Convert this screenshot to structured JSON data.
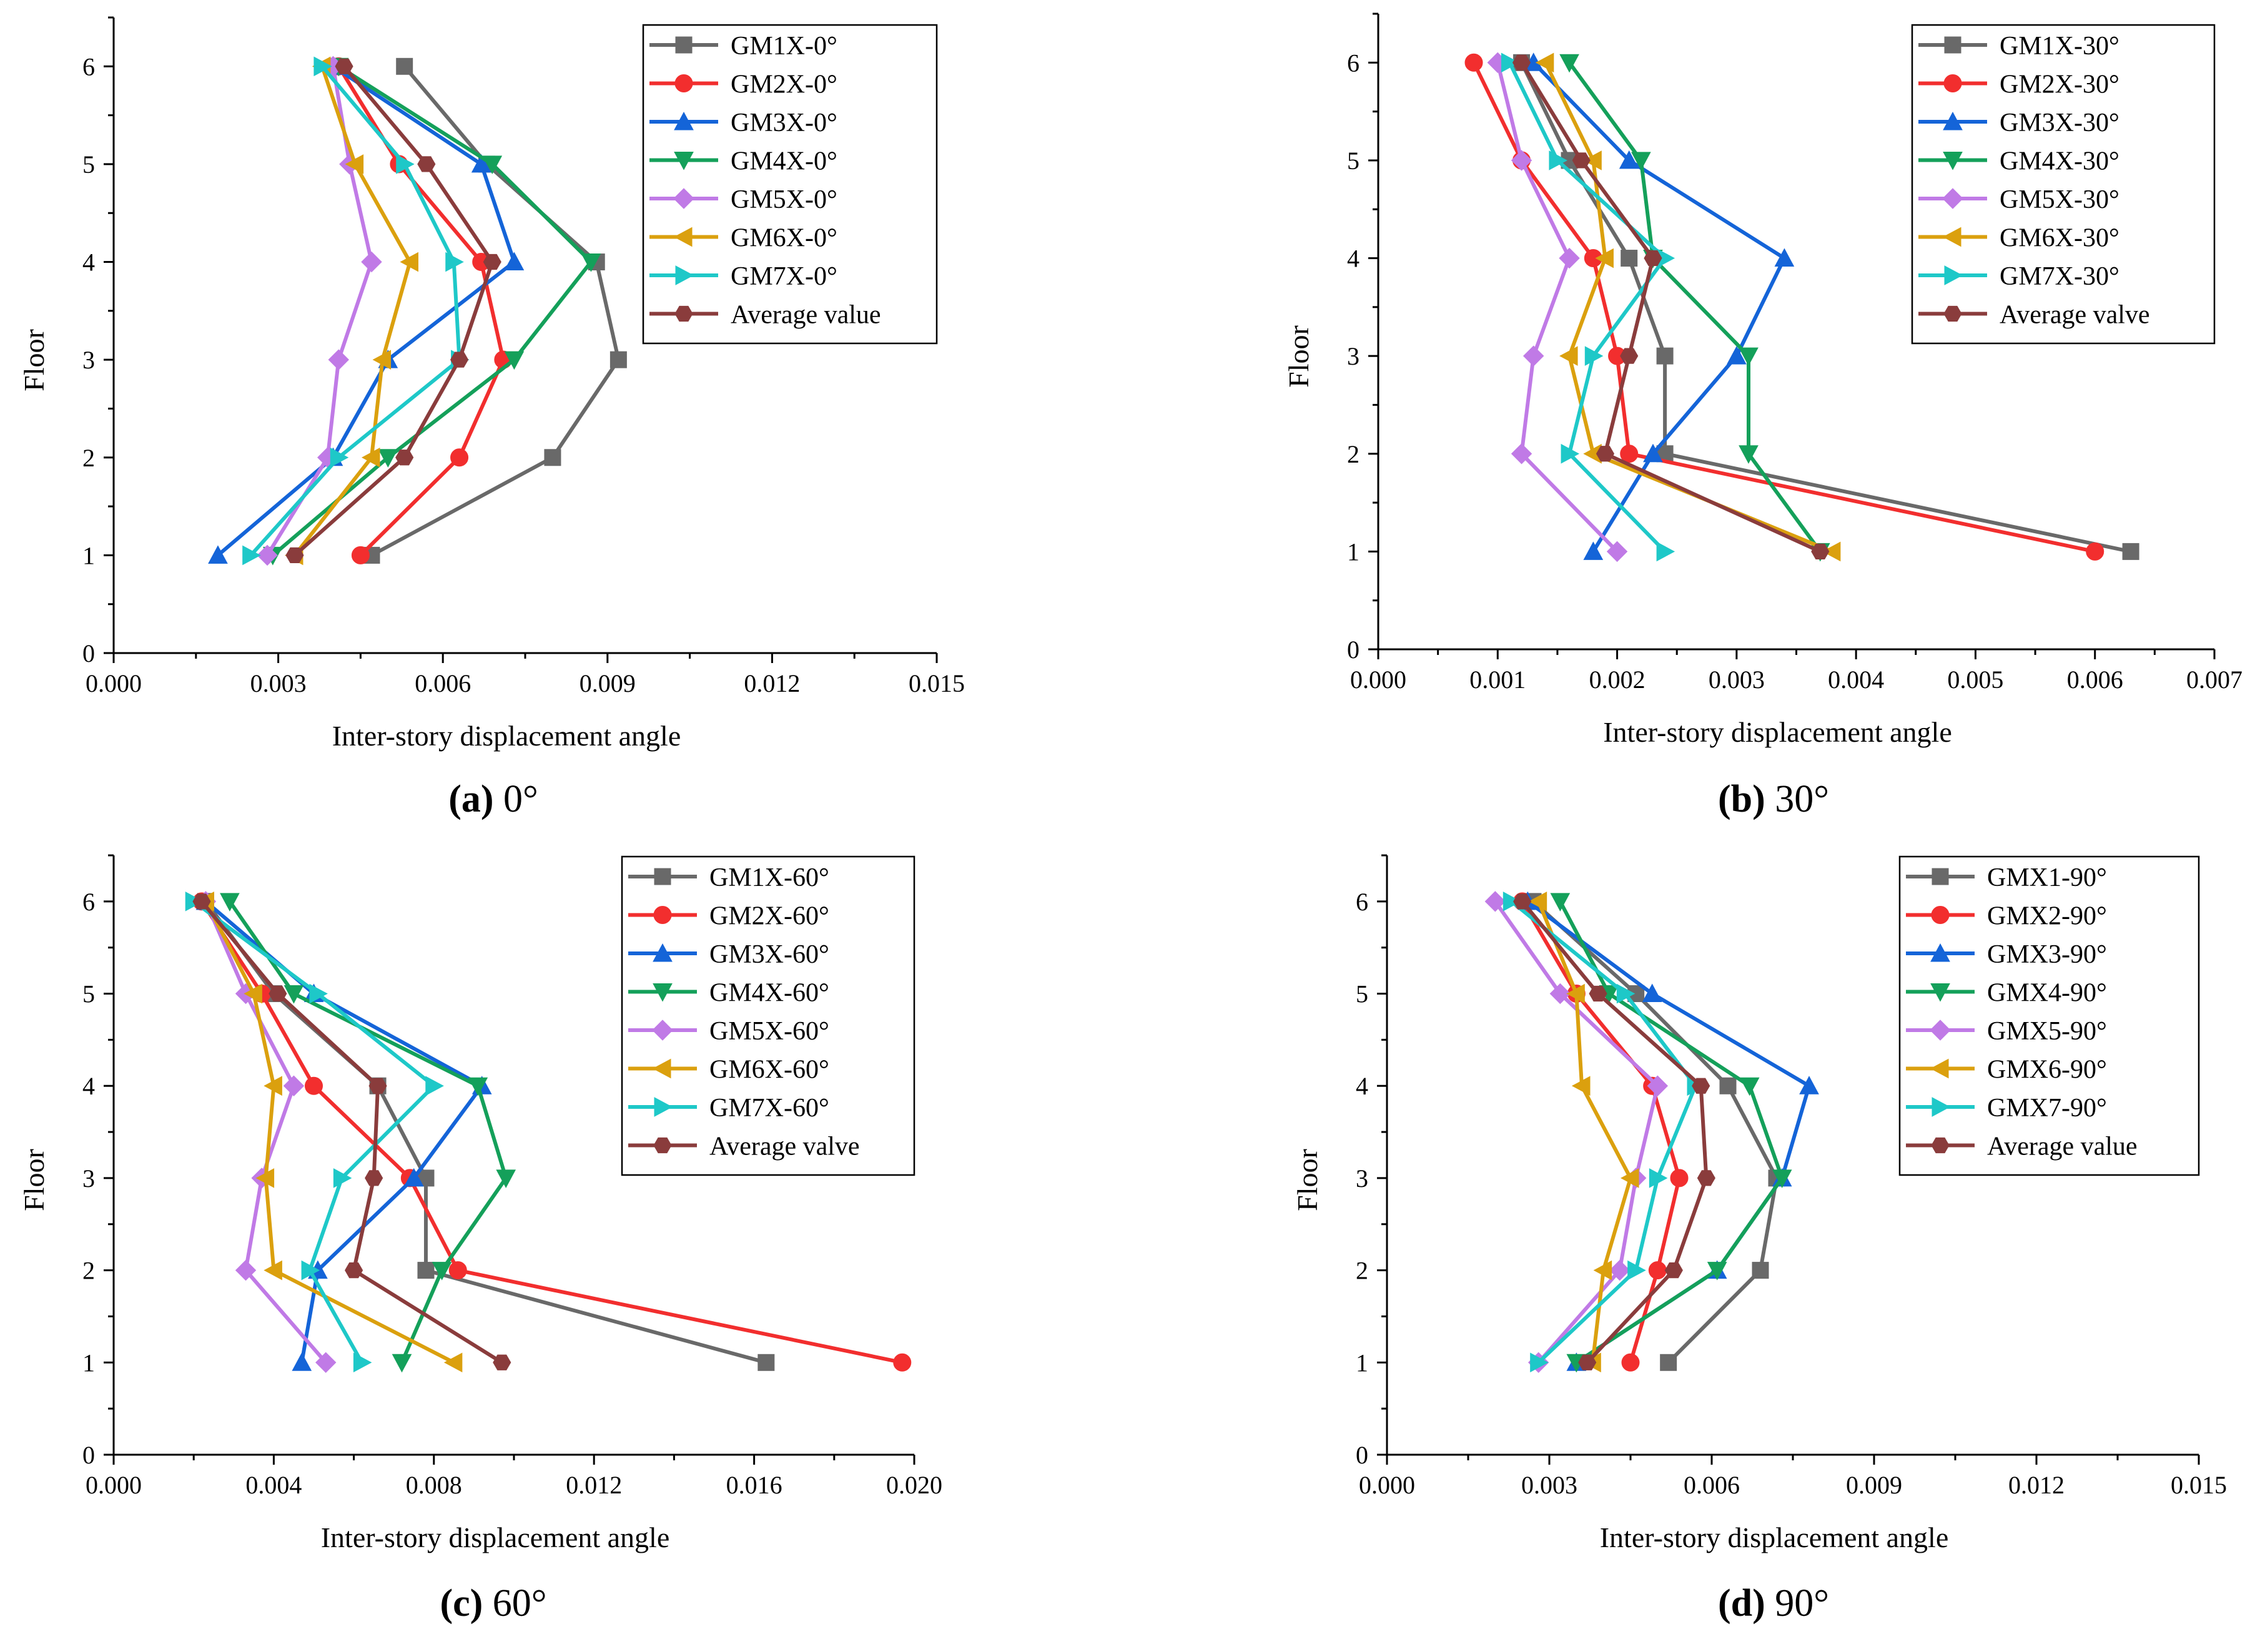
{
  "series_colors": [
    "#696969",
    "#f22e2e",
    "#1464d8",
    "#14a05a",
    "#c07ae6",
    "#dba00e",
    "#1ec8c8",
    "#8a3c3c"
  ],
  "series_markers": [
    "square",
    "circle",
    "triangle-up",
    "triangle-down",
    "diamond",
    "triangle-left",
    "triangle-right",
    "hexagon"
  ],
  "chart_data": [
    {
      "type": "line",
      "panel_label": "(a)",
      "caption": "0°",
      "xlabel": "Inter-story displacement angle",
      "ylabel": "Floor",
      "xlim": [
        0,
        0.015
      ],
      "xticks": [
        "0.000",
        "0.003",
        "0.006",
        "0.009",
        "0.012",
        "0.015"
      ],
      "ylim": [
        0,
        6.5
      ],
      "yticks": [
        "0",
        "1",
        "2",
        "3",
        "4",
        "5",
        "6"
      ],
      "floors": [
        1,
        2,
        3,
        4,
        5,
        6
      ],
      "legend_position": "top-right",
      "series": [
        {
          "name": "GM1X-0°",
          "values": [
            0.0047,
            0.008,
            0.0092,
            0.0088,
            0.0068,
            0.0053
          ]
        },
        {
          "name": "GM2X-0°",
          "values": [
            0.0045,
            0.0063,
            0.0071,
            0.0067,
            0.0052,
            0.0041
          ]
        },
        {
          "name": "GM3X-0°",
          "values": [
            0.0019,
            0.004,
            0.005,
            0.0073,
            0.0067,
            0.004
          ]
        },
        {
          "name": "GM4X-0°",
          "values": [
            0.0029,
            0.005,
            0.0073,
            0.0087,
            0.0069,
            0.0041
          ]
        },
        {
          "name": "GM5X-0°",
          "values": [
            0.0028,
            0.0039,
            0.0041,
            0.0047,
            0.0043,
            0.004
          ]
        },
        {
          "name": "GM6X-0°",
          "values": [
            0.0033,
            0.0047,
            0.0049,
            0.0054,
            0.0044,
            0.0038
          ]
        },
        {
          "name": "GM7X-0°",
          "values": [
            0.0025,
            0.0041,
            0.0063,
            0.0062,
            0.0053,
            0.0038
          ]
        },
        {
          "name": "Average value",
          "values": [
            0.0033,
            0.0053,
            0.0063,
            0.0069,
            0.0057,
            0.0042
          ]
        }
      ]
    },
    {
      "type": "line",
      "panel_label": "(b)",
      "caption": "30°",
      "xlabel": "Inter-story displacement angle",
      "ylabel": "Floor",
      "xlim": [
        0,
        0.007
      ],
      "xticks": [
        "0.000",
        "0.001",
        "0.002",
        "0.003",
        "0.004",
        "0.005",
        "0.006",
        "0.007"
      ],
      "ylim": [
        0,
        6.5
      ],
      "yticks": [
        "0",
        "1",
        "2",
        "3",
        "4",
        "5",
        "6"
      ],
      "floors": [
        1,
        2,
        3,
        4,
        5,
        6
      ],
      "legend_position": "top-right",
      "series": [
        {
          "name": "GM1X-30°",
          "values": [
            0.0063,
            0.0024,
            0.0024,
            0.0021,
            0.0016,
            0.0012
          ]
        },
        {
          "name": "GM2X-30°",
          "values": [
            0.006,
            0.0021,
            0.002,
            0.0018,
            0.0012,
            0.0008
          ]
        },
        {
          "name": "GM3X-30°",
          "values": [
            0.0018,
            0.0023,
            0.003,
            0.0034,
            0.0021,
            0.0013
          ]
        },
        {
          "name": "GM4X-30°",
          "values": [
            0.0037,
            0.0031,
            0.0031,
            0.0023,
            0.0022,
            0.0016
          ]
        },
        {
          "name": "GM5X-30°",
          "values": [
            0.002,
            0.0012,
            0.0013,
            0.0016,
            0.0012,
            0.001
          ]
        },
        {
          "name": "GM6X-30°",
          "values": [
            0.0038,
            0.0018,
            0.0016,
            0.0019,
            0.0018,
            0.0014
          ]
        },
        {
          "name": "GM7X-30°",
          "values": [
            0.0024,
            0.0016,
            0.0018,
            0.0024,
            0.0015,
            0.0011
          ]
        },
        {
          "name": "Average valve",
          "values": [
            0.0037,
            0.0019,
            0.0021,
            0.0023,
            0.0017,
            0.0012
          ]
        }
      ]
    },
    {
      "type": "line",
      "panel_label": "(c)",
      "caption": "60°",
      "xlabel": "Inter-story displacement angle",
      "ylabel": "Floor",
      "xlim": [
        0,
        0.02
      ],
      "xticks": [
        "0.000",
        "0.004",
        "0.008",
        "0.012",
        "0.016",
        "0.020"
      ],
      "ylim": [
        0,
        6.5
      ],
      "yticks": [
        "0",
        "1",
        "2",
        "3",
        "4",
        "5",
        "6"
      ],
      "floors": [
        1,
        2,
        3,
        4,
        5,
        6
      ],
      "legend_position": "top-right",
      "series": [
        {
          "name": "GM1X-60°",
          "values": [
            0.0163,
            0.0078,
            0.0078,
            0.0066,
            0.004,
            0.0023
          ]
        },
        {
          "name": "GM2X-60°",
          "values": [
            0.0197,
            0.0086,
            0.0074,
            0.005,
            0.0037,
            0.0022
          ]
        },
        {
          "name": "GM3X-60°",
          "values": [
            0.0047,
            0.0051,
            0.0075,
            0.0092,
            0.005,
            0.0023
          ]
        },
        {
          "name": "GM4X-60°",
          "values": [
            0.0072,
            0.0082,
            0.0098,
            0.0091,
            0.0045,
            0.0029
          ]
        },
        {
          "name": "GM5X-60°",
          "values": [
            0.0053,
            0.0033,
            0.0037,
            0.0045,
            0.0033,
            0.0023
          ]
        },
        {
          "name": "GM6X-60°",
          "values": [
            0.0085,
            0.004,
            0.0038,
            0.004,
            0.0035,
            0.0023
          ]
        },
        {
          "name": "GM7X-60°",
          "values": [
            0.0062,
            0.0049,
            0.0057,
            0.008,
            0.0051,
            0.002
          ]
        },
        {
          "name": "Average valve",
          "values": [
            0.0097,
            0.006,
            0.0065,
            0.0066,
            0.0041,
            0.0022
          ]
        }
      ]
    },
    {
      "type": "line",
      "panel_label": "(d)",
      "caption": "90°",
      "xlabel": "Inter-story displacement angle",
      "ylabel": "Floor",
      "xlim": [
        0,
        0.015
      ],
      "xticks": [
        "0.000",
        "0.003",
        "0.006",
        "0.009",
        "0.012",
        "0.015"
      ],
      "ylim": [
        0,
        6.5
      ],
      "yticks": [
        "0",
        "1",
        "2",
        "3",
        "4",
        "5",
        "6"
      ],
      "floors": [
        1,
        2,
        3,
        4,
        5,
        6
      ],
      "legend_position": "top-right",
      "series": [
        {
          "name": "GMX1-90°",
          "values": [
            0.0052,
            0.0069,
            0.0072,
            0.0063,
            0.0046,
            0.0027
          ]
        },
        {
          "name": "GMX2-90°",
          "values": [
            0.0045,
            0.005,
            0.0054,
            0.0049,
            0.0035,
            0.0025
          ]
        },
        {
          "name": "GMX3-90°",
          "values": [
            0.0035,
            0.0061,
            0.0073,
            0.0078,
            0.0049,
            0.0026
          ]
        },
        {
          "name": "GMX4-90°",
          "values": [
            0.0035,
            0.0061,
            0.0073,
            0.0067,
            0.0041,
            0.0032
          ]
        },
        {
          "name": "GMX5-90°",
          "values": [
            0.0028,
            0.0043,
            0.0046,
            0.005,
            0.0032,
            0.002
          ]
        },
        {
          "name": "GMX6-90°",
          "values": [
            0.0038,
            0.004,
            0.0045,
            0.0036,
            0.0035,
            0.0028
          ]
        },
        {
          "name": "GMX7-90°",
          "values": [
            0.0028,
            0.0046,
            0.005,
            0.0057,
            0.0044,
            0.0023
          ]
        },
        {
          "name": "Average value",
          "values": [
            0.0037,
            0.0053,
            0.0059,
            0.0058,
            0.0039,
            0.0025
          ]
        }
      ]
    }
  ]
}
